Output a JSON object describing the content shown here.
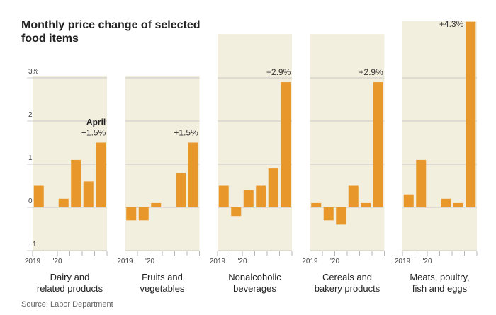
{
  "chart_data": {
    "type": "bar",
    "title": "Monthly price change of selected\nfood items",
    "source": "Source: Labor Department",
    "annotation": "April",
    "categories": [
      "2019",
      null,
      "'20",
      null,
      null,
      null
    ],
    "ylim": [
      -1,
      3
    ],
    "yticks": [
      {
        "value": -1,
        "label": "−1"
      },
      0,
      1,
      2,
      {
        "value": 3,
        "label": "3%"
      }
    ],
    "grid": true,
    "series": [
      {
        "name": "Dairy and\nrelated products",
        "color": "#e8972a",
        "values": [
          0.5,
          0,
          0.2,
          1.1,
          0.6,
          1.5
        ],
        "value_labels": [
          null,
          null,
          null,
          null,
          null,
          "+1.5%"
        ]
      },
      {
        "name": "Fruits and\nvegetables",
        "color": "#e8972a",
        "values": [
          -0.3,
          -0.3,
          0.1,
          0,
          0.8,
          1.5
        ],
        "value_labels": [
          null,
          null,
          null,
          null,
          null,
          "+1.5%"
        ]
      },
      {
        "name": "Nonalcoholic\nbeverages",
        "color": "#e8972a",
        "values": [
          0.5,
          -0.2,
          0.4,
          0.5,
          0.9,
          2.9
        ],
        "value_labels": [
          null,
          null,
          null,
          null,
          null,
          "+2.9%"
        ]
      },
      {
        "name": "Cereals and\nbakery products",
        "color": "#e8972a",
        "values": [
          0.1,
          -0.3,
          -0.4,
          0.5,
          0.1,
          2.9
        ],
        "value_labels": [
          null,
          null,
          null,
          null,
          null,
          "+2.9%"
        ]
      },
      {
        "name": "Meats, poultry,\nfish and eggs",
        "color": "#e8972a",
        "values": [
          0.3,
          1.1,
          0,
          0.2,
          0.1,
          4.3
        ],
        "value_labels": [
          null,
          null,
          null,
          null,
          null,
          "+4.3%"
        ]
      }
    ]
  }
}
